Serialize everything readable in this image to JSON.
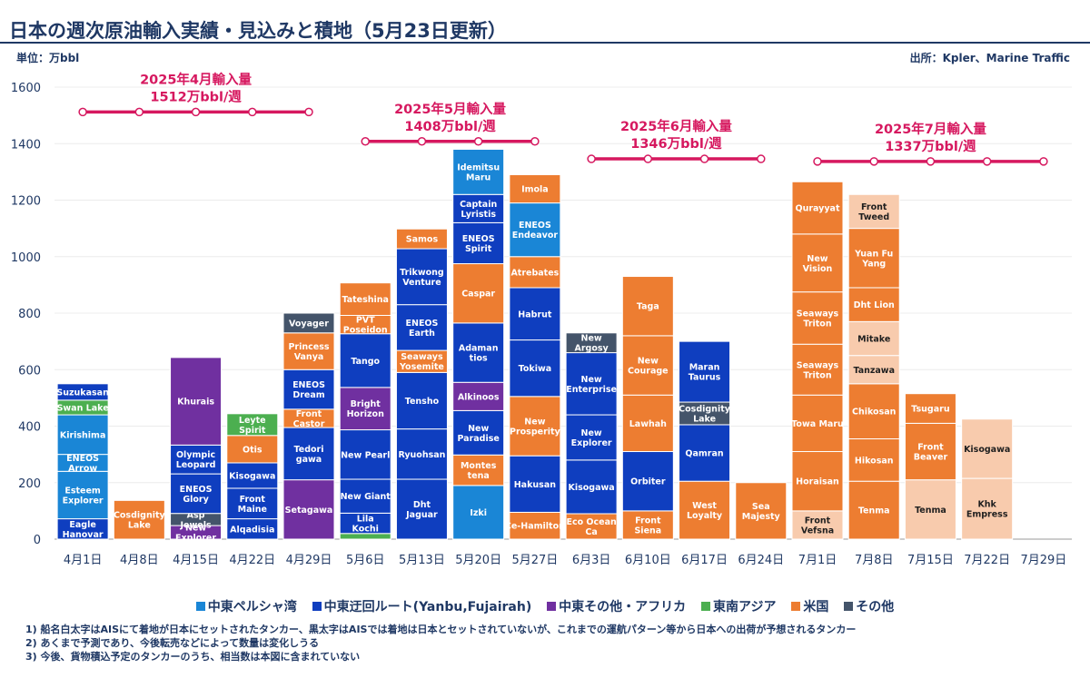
{
  "title": "日本の週次原油輸入実績・見込みと積地（5月23日更新）",
  "unit_label": "単位：万bbl",
  "source_label": "出所：Kpler、Marine Traffic",
  "legend": [
    {
      "key": "A",
      "label": "中東ペルシャ湾",
      "color": "#1a86d6"
    },
    {
      "key": "B",
      "label": "中東迂回ルート(Yanbu,Fujairah)",
      "color": "#0f3ebf"
    },
    {
      "key": "C",
      "label": "中東その他・アフリカ",
      "color": "#7030a0"
    },
    {
      "key": "D",
      "label": "東南アジア",
      "color": "#4caf50"
    },
    {
      "key": "E",
      "label": "米国",
      "color": "#ed7d31"
    },
    {
      "key": "F",
      "label": "その他",
      "color": "#44546a"
    }
  ],
  "notes": [
    "1) 船名白太字はAISにて着地が日本にセットされたタンカー、黒太字はAISでは着地は日本とセットされていないが、これまでの運航パターン等から日本への出荷が予想されるタンカー",
    "2) あくまで予測であり、今後転売などによって数量は変化しうる",
    "3) 今後、貨物積込予定のタンカーのうち、相当数は本図に含まれていない"
  ],
  "chart_data": {
    "type": "bar",
    "stacked": true,
    "ylim": [
      0,
      1600
    ],
    "yticks": [
      0,
      200,
      400,
      600,
      800,
      1000,
      1200,
      1400,
      1600
    ],
    "categories": [
      "4月1日",
      "4月8日",
      "4月15日",
      "4月22日",
      "4月29日",
      "5月6日",
      "5月13日",
      "5月20日",
      "5月27日",
      "6月3日",
      "6月10日",
      "6月17日",
      "6月24日",
      "7月1日",
      "7月8日",
      "7月15日",
      "7月22日",
      "7月29日"
    ],
    "forecast_color": "#f8cbad",
    "stacks": [
      [
        {
          "n": "Eagle Hanovar",
          "v": 72,
          "c": "B"
        },
        {
          "n": "Esteem Explorer",
          "v": 168,
          "c": "A"
        },
        {
          "n": "ENEOS Arrow",
          "v": 60,
          "c": "A"
        },
        {
          "n": "Kirishima",
          "v": 140,
          "c": "A"
        },
        {
          "n": "Swan Lake",
          "v": 52,
          "c": "D"
        },
        {
          "n": "Suzukasan",
          "v": 58,
          "c": "B"
        }
      ],
      [
        {
          "n": "Cosdignity Lake",
          "v": 137,
          "c": "E"
        }
      ],
      [
        {
          "n": "New Explorer",
          "v": 48,
          "c": "C"
        },
        {
          "n": "Asp Jewels",
          "v": 43,
          "c": "F"
        },
        {
          "n": "ENEOS Glory",
          "v": 140,
          "c": "B"
        },
        {
          "n": "Olympic Leopard",
          "v": 102,
          "c": "B"
        },
        {
          "n": "Khurais",
          "v": 310,
          "c": "C"
        }
      ],
      [
        {
          "n": "Alqadisia",
          "v": 72,
          "c": "B"
        },
        {
          "n": "Front Maine",
          "v": 108,
          "c": "B"
        },
        {
          "n": "Kisogawa",
          "v": 90,
          "c": "B"
        },
        {
          "n": "Otis",
          "v": 97,
          "c": "E"
        },
        {
          "n": "Leyte Spirit",
          "v": 77,
          "c": "D"
        }
      ],
      [
        {
          "n": "Setagawa",
          "v": 210,
          "c": "C"
        },
        {
          "n": "Tedori gawa",
          "v": 185,
          "c": "B"
        },
        {
          "n": "Front Castor",
          "v": 65,
          "c": "E"
        },
        {
          "n": "ENEOS Dream",
          "v": 140,
          "c": "B"
        },
        {
          "n": "Princess Vanya",
          "v": 130,
          "c": "E"
        },
        {
          "n": "Voyager",
          "v": 70,
          "c": "F"
        }
      ],
      [
        {
          "n": "",
          "v": 20,
          "c": "D"
        },
        {
          "n": "Lila Kochi",
          "v": 72,
          "c": "B"
        },
        {
          "n": "New Giant",
          "v": 120,
          "c": "B"
        },
        {
          "n": "New Pearl",
          "v": 175,
          "c": "B"
        },
        {
          "n": "Bright Horizon",
          "v": 150,
          "c": "C"
        },
        {
          "n": "Tango",
          "v": 190,
          "c": "B"
        },
        {
          "n": "PVT Poseidon",
          "v": 65,
          "c": "E"
        },
        {
          "n": "Tateshina",
          "v": 115,
          "c": "E"
        }
      ],
      [
        {
          "n": "Dht Jaguar",
          "v": 212,
          "c": "B"
        },
        {
          "n": "Ryuohsan",
          "v": 178,
          "c": "B"
        },
        {
          "n": "Tensho",
          "v": 200,
          "c": "B"
        },
        {
          "n": "Seaways Yosemite",
          "v": 78,
          "c": "E"
        },
        {
          "n": "ENEOS Earth",
          "v": 162,
          "c": "B"
        },
        {
          "n": "Trikwong Venture",
          "v": 198,
          "c": "B"
        },
        {
          "n": "Samos",
          "v": 70,
          "c": "E"
        }
      ],
      [
        {
          "n": "Izki",
          "v": 190,
          "c": "A"
        },
        {
          "n": "Montes tena",
          "v": 108,
          "c": "E"
        },
        {
          "n": "New Paradise",
          "v": 157,
          "c": "B"
        },
        {
          "n": "Alkinoos",
          "v": 100,
          "c": "C"
        },
        {
          "n": "Adaman tios",
          "v": 210,
          "c": "B"
        },
        {
          "n": "Caspar",
          "v": 210,
          "c": "E"
        },
        {
          "n": "ENEOS Spirit",
          "v": 145,
          "c": "B"
        },
        {
          "n": "Captain Lyristis",
          "v": 100,
          "c": "B"
        },
        {
          "n": "Idemitsu Maru",
          "v": 160,
          "c": "A"
        }
      ],
      [
        {
          "n": "Ce-Hamilton",
          "v": 95,
          "c": "E"
        },
        {
          "n": "Hakusan",
          "v": 200,
          "c": "B"
        },
        {
          "n": "New Prosperity",
          "v": 210,
          "c": "E"
        },
        {
          "n": "Tokiwa",
          "v": 200,
          "c": "B"
        },
        {
          "n": "Habrut",
          "v": 185,
          "c": "B"
        },
        {
          "n": "Atrebates",
          "v": 110,
          "c": "E"
        },
        {
          "n": "ENEOS Endeavor",
          "v": 190,
          "c": "A"
        },
        {
          "n": "Imola",
          "v": 100,
          "c": "E"
        }
      ],
      [
        {
          "n": "Eco Ocean Ca",
          "v": 90,
          "c": "E"
        },
        {
          "n": "Kisogawa",
          "v": 190,
          "c": "B"
        },
        {
          "n": "New Explorer",
          "v": 160,
          "c": "B"
        },
        {
          "n": "New Enterprise",
          "v": 220,
          "c": "B"
        },
        {
          "n": "New Argosy",
          "v": 70,
          "c": "F"
        }
      ],
      [
        {
          "n": "Front Siena",
          "v": 100,
          "c": "E"
        },
        {
          "n": "Orbiter",
          "v": 210,
          "c": "B"
        },
        {
          "n": "Lawhah",
          "v": 200,
          "c": "E"
        },
        {
          "n": "New Courage",
          "v": 210,
          "c": "E"
        },
        {
          "n": "Taga",
          "v": 210,
          "c": "E"
        }
      ],
      [
        {
          "n": "West Loyalty",
          "v": 205,
          "c": "E"
        },
        {
          "n": "Qamran",
          "v": 200,
          "c": "B"
        },
        {
          "n": "Cosdignity Lake",
          "v": 80,
          "c": "F"
        },
        {
          "n": "Maran Taurus",
          "v": 215,
          "c": "B"
        }
      ],
      [
        {
          "n": "Sea Majesty",
          "v": 200,
          "c": "E"
        }
      ],
      [
        {
          "n": "Front Vefsna",
          "v": 100,
          "c": "E",
          "f": true
        },
        {
          "n": "Horaisan",
          "v": 210,
          "c": "E"
        },
        {
          "n": "Towa Maru",
          "v": 200,
          "c": "E"
        },
        {
          "n": "Seaways Triton",
          "v": 180,
          "c": "E"
        },
        {
          "n": "Seaways Triton",
          "v": 185,
          "c": "E"
        },
        {
          "n": "New Vision",
          "v": 205,
          "c": "E"
        },
        {
          "n": "Qurayyat",
          "v": 185,
          "c": "E"
        }
      ],
      [
        {
          "n": "Tenma",
          "v": 205,
          "c": "E"
        },
        {
          "n": "Hikosan",
          "v": 150,
          "c": "E"
        },
        {
          "n": "Chikosan",
          "v": 195,
          "c": "E"
        },
        {
          "n": "Tanzawa",
          "v": 100,
          "c": "E",
          "f": true
        },
        {
          "n": "Mitake",
          "v": 120,
          "c": "E",
          "f": true
        },
        {
          "n": "Dht Lion",
          "v": 120,
          "c": "E"
        },
        {
          "n": "Yuan Fu Yang",
          "v": 210,
          "c": "E"
        },
        {
          "n": "Front Tweed",
          "v": 120,
          "c": "E",
          "f": true
        }
      ],
      [
        {
          "n": "Tenma",
          "v": 210,
          "c": "E",
          "f": true
        },
        {
          "n": "Front Beaver",
          "v": 200,
          "c": "E"
        },
        {
          "n": "Tsugaru",
          "v": 105,
          "c": "E"
        }
      ],
      [
        {
          "n": "Khk Empress",
          "v": 215,
          "c": "E",
          "f": true
        },
        {
          "n": "Kisogawa",
          "v": 210,
          "c": "E",
          "f": true
        }
      ],
      []
    ],
    "monthly_import_lines": [
      {
        "label1": "2025年4月輸入量",
        "label2": "1512万bbl/週",
        "value": 1512,
        "start": 0,
        "end": 4
      },
      {
        "label1": "2025年5月輸入量",
        "label2": "1408万bbl/週",
        "value": 1408,
        "start": 5,
        "end": 8
      },
      {
        "label1": "2025年6月輸入量",
        "label2": "1346万bbl/週",
        "value": 1346,
        "start": 9,
        "end": 12
      },
      {
        "label1": "2025年7月輸入量",
        "label2": "1337万bbl/週",
        "value": 1337,
        "start": 13,
        "end": 17
      }
    ],
    "line_color": "#d6185f"
  }
}
